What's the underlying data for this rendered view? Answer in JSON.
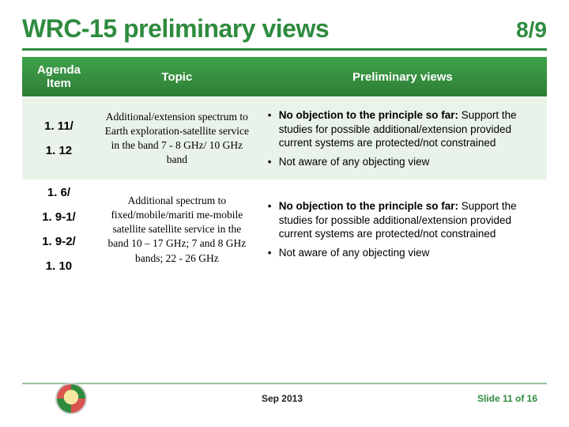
{
  "title": "WRC-15 preliminary views",
  "pager": "8/9",
  "columns": [
    "Agenda Item",
    "Topic",
    "Preliminary views"
  ],
  "rows": [
    {
      "agenda": [
        "1. 11/",
        "1. 12"
      ],
      "topic": "Additional/extension spectrum to Earth exploration-satellite service in the band 7 - 8 GHz/ 10 GHz band",
      "views": [
        {
          "lead": "No objection to the principle so far:",
          "rest": " Support the studies for possible additional/extension provided current systems are protected/not constrained"
        },
        {
          "lead": "",
          "rest": "Not aware of any objecting view"
        }
      ]
    },
    {
      "agenda": [
        "1. 6/",
        "1. 9-1/",
        "1. 9-2/",
        "1. 10"
      ],
      "topic": "Additional spectrum to fixed/mobile/mariti me-mobile satellite satellite service in the band 10 – 17 GHz; 7 and 8 GHz bands; 22 - 26 GHz",
      "views": [
        {
          "lead": "No objection to the principle so far:",
          "rest": " Support the studies for possible additional/extension provided current systems are protected/not constrained"
        },
        {
          "lead": "",
          "rest": "Not aware of any objecting view"
        }
      ]
    }
  ],
  "footer": {
    "date": "Sep 2013",
    "slide": "Slide 11 of 16"
  },
  "colors": {
    "brand": "#2e8b3e",
    "header_top": "#3fa24b",
    "header_bot": "#2e7d36",
    "row_alt": "#eaf3e9"
  }
}
